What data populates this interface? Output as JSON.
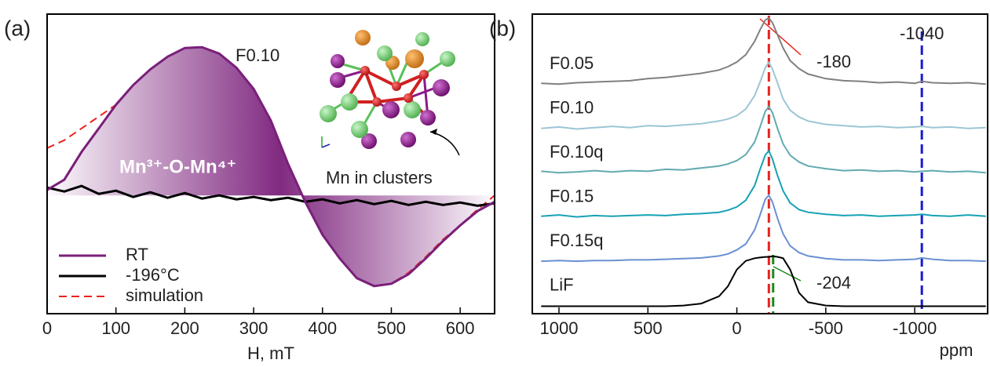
{
  "chart_data": [
    {
      "type": "line",
      "panel": "(a)",
      "xlabel": "H, mT",
      "xlim": [
        0,
        650
      ],
      "xticks": [
        0,
        100,
        200,
        300,
        400,
        500,
        600
      ],
      "ylim": [
        -1.5,
        2.3
      ],
      "legend": "lower left",
      "annotations": [
        "F0.10",
        "Mn³⁺-O-Mn⁴⁺",
        "Mn in clusters"
      ],
      "x": [
        0,
        25,
        50,
        75,
        100,
        125,
        150,
        175,
        200,
        225,
        250,
        275,
        300,
        325,
        350,
        375,
        400,
        425,
        450,
        475,
        500,
        525,
        550,
        575,
        600,
        625,
        650
      ],
      "series": [
        {
          "name": "RT",
          "color": "#7a1f7a",
          "dashed": false,
          "fill": true,
          "values": [
            0.07,
            0.2,
            0.55,
            0.85,
            1.15,
            1.4,
            1.6,
            1.76,
            1.87,
            1.88,
            1.8,
            1.62,
            1.35,
            0.95,
            0.4,
            -0.08,
            -0.5,
            -0.8,
            -1.05,
            -1.15,
            -1.12,
            -1.0,
            -0.8,
            -0.58,
            -0.38,
            -0.2,
            -0.08
          ]
        },
        {
          "name": "-196°C",
          "color": "#000000",
          "dashed": false,
          "fill": false,
          "values": [
            0.1,
            0.05,
            0.12,
            0.02,
            0.06,
            -0.02,
            0.04,
            -0.03,
            0.03,
            -0.04,
            0.0,
            -0.05,
            -0.02,
            -0.06,
            -0.03,
            -0.08,
            -0.05,
            -0.1,
            -0.06,
            -0.11,
            -0.07,
            -0.12,
            -0.08,
            -0.12,
            -0.09,
            -0.13,
            -0.1
          ]
        },
        {
          "name": "simulation",
          "color": "#e8231d",
          "dashed": true,
          "fill": false,
          "values": [
            0.6,
            0.7,
            0.85,
            1.0,
            1.15,
            1.4,
            1.6,
            1.76,
            1.87,
            1.88,
            1.8,
            1.62,
            1.35,
            0.95,
            0.4,
            -0.08,
            -0.5,
            -0.8,
            -1.05,
            -1.15,
            -1.12,
            -0.98,
            -0.78,
            -0.56,
            -0.38,
            -0.18,
            0.0
          ]
        }
      ]
    },
    {
      "type": "line",
      "panel": "(b)",
      "xlabel": "ppm",
      "offset": true,
      "xlim": [
        1150,
        -1410
      ],
      "xticks": [
        1000,
        500,
        0,
        -500,
        -1000
      ],
      "reference_lines": [
        {
          "x": -180,
          "label": "-180",
          "color": "#e8231d"
        },
        {
          "x": -1040,
          "label": "-1040",
          "color": "#1a1ad0"
        },
        {
          "x": -204,
          "label": "-204",
          "color": "#1a8a1a"
        }
      ],
      "x": [
        1100,
        1000,
        900,
        800,
        700,
        600,
        500,
        400,
        300,
        200,
        100,
        50,
        0,
        -50,
        -100,
        -130,
        -160,
        -180,
        -200,
        -230,
        -260,
        -300,
        -350,
        -400,
        -500,
        -600,
        -700,
        -800,
        -900,
        -1000,
        -1040,
        -1100,
        -1200,
        -1300,
        -1400
      ],
      "series": [
        {
          "name": "F0.05",
          "color": "#808080",
          "values": [
            2,
            1,
            3,
            4,
            5,
            6,
            9,
            11,
            14,
            17,
            22,
            27,
            34,
            45,
            65,
            82,
            97,
            100,
            93,
            74,
            55,
            36,
            24,
            16,
            9,
            6,
            5,
            3,
            4,
            2,
            5,
            3,
            2,
            3,
            1
          ]
        },
        {
          "name": "F0.10",
          "color": "#9cc6d4",
          "values": [
            1,
            3,
            0,
            2,
            4,
            2,
            5,
            4,
            6,
            8,
            12,
            15,
            20,
            30,
            50,
            70,
            92,
            100,
            90,
            68,
            45,
            28,
            18,
            12,
            7,
            5,
            3,
            4,
            2,
            3,
            4,
            2,
            3,
            1,
            2
          ]
        },
        {
          "name": "F0.10q",
          "color": "#62aab0",
          "values": [
            3,
            1,
            2,
            4,
            2,
            4,
            3,
            6,
            5,
            8,
            11,
            14,
            19,
            28,
            47,
            69,
            93,
            100,
            91,
            66,
            44,
            27,
            17,
            11,
            7,
            4,
            5,
            3,
            4,
            2,
            3,
            4,
            2,
            3,
            1
          ]
        },
        {
          "name": "F0.15",
          "color": "#16a2b4",
          "values": [
            2,
            4,
            1,
            3,
            2,
            3,
            4,
            3,
            5,
            6,
            8,
            11,
            16,
            26,
            48,
            72,
            94,
            100,
            88,
            62,
            40,
            22,
            12,
            8,
            5,
            3,
            4,
            2,
            3,
            4,
            5,
            3,
            2,
            4,
            2
          ]
        },
        {
          "name": "F0.15q",
          "color": "#6a90d2",
          "values": [
            1,
            2,
            1,
            2,
            2,
            3,
            3,
            4,
            5,
            6,
            9,
            12,
            18,
            27,
            48,
            70,
            94,
            100,
            90,
            64,
            42,
            24,
            14,
            9,
            5,
            3,
            3,
            2,
            3,
            4,
            6,
            4,
            2,
            2,
            1
          ]
        },
        {
          "name": "LiF",
          "color": "#000000",
          "values": [
            0,
            0,
            0,
            0,
            0,
            0,
            0,
            0,
            1,
            4,
            15,
            30,
            55,
            68,
            72,
            73,
            74,
            74,
            75,
            74,
            72,
            55,
            20,
            6,
            1,
            0,
            0,
            0,
            0,
            0,
            0,
            0,
            0,
            0,
            0
          ]
        }
      ]
    }
  ]
}
